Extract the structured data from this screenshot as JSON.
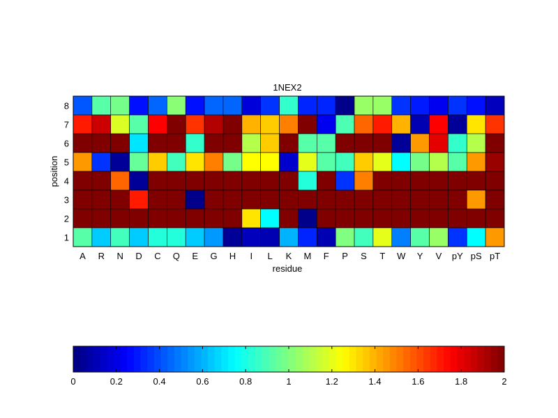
{
  "chart_data": {
    "type": "heatmap",
    "title": "1NEX2",
    "xlabel": "residue",
    "ylabel": "position",
    "x_categories": [
      "A",
      "R",
      "N",
      "D",
      "C",
      "Q",
      "E",
      "G",
      "H",
      "I",
      "L",
      "K",
      "M",
      "F",
      "P",
      "S",
      "T",
      "W",
      "Y",
      "V",
      "pY",
      "pS",
      "pT"
    ],
    "y_categories": [
      "1",
      "2",
      "3",
      "4",
      "5",
      "6",
      "7",
      "8"
    ],
    "colorbar": {
      "min": 0,
      "max": 2,
      "ticks": [
        "0",
        "0.2",
        "0.4",
        "0.6",
        "0.8",
        "1",
        "1.2",
        "1.4",
        "1.6",
        "1.8",
        "2"
      ],
      "colormap": "jet"
    },
    "rows": [
      {
        "position": "8",
        "values": [
          0.42,
          0.92,
          0.98,
          0.28,
          0.45,
          1.02,
          0.28,
          0.45,
          0.45,
          0.18,
          0.35,
          0.85,
          0.32,
          0.32,
          0.02,
          1.05,
          1.05,
          0.35,
          0.3,
          0.22,
          0.35,
          0.28,
          0.12
        ]
      },
      {
        "position": "7",
        "values": [
          1.7,
          1.85,
          1.18,
          0.92,
          1.75,
          2.0,
          1.65,
          1.9,
          2.0,
          1.4,
          1.35,
          1.5,
          2.0,
          0.22,
          0.9,
          1.55,
          1.7,
          1.4,
          0.1,
          1.75,
          0.05,
          1.3,
          1.65
        ]
      },
      {
        "position": "6",
        "values": [
          2.0,
          2.0,
          2.0,
          0.7,
          2.0,
          2.0,
          0.85,
          2.0,
          2.0,
          1.1,
          1.35,
          2.0,
          0.92,
          0.92,
          2.0,
          2.0,
          2.0,
          0.05,
          1.45,
          1.8,
          0.85,
          1.1,
          2.0
        ]
      },
      {
        "position": "5",
        "values": [
          1.45,
          0.35,
          0.05,
          0.95,
          1.35,
          0.88,
          1.3,
          1.5,
          0.98,
          1.25,
          1.25,
          0.15,
          1.2,
          0.92,
          0.88,
          1.35,
          1.2,
          0.75,
          0.98,
          1.1,
          0.92,
          1.45,
          1.95
        ]
      },
      {
        "position": "4",
        "values": [
          2.0,
          2.0,
          1.55,
          0.05,
          2.0,
          2.0,
          2.0,
          2.0,
          2.0,
          2.0,
          2.0,
          2.0,
          0.82,
          2.0,
          0.35,
          1.5,
          2.0,
          2.0,
          2.0,
          2.0,
          2.0,
          2.0,
          2.0
        ]
      },
      {
        "position": "3",
        "values": [
          2.0,
          2.0,
          2.0,
          1.7,
          2.0,
          2.0,
          0.02,
          2.0,
          2.0,
          2.0,
          2.0,
          2.0,
          2.0,
          2.0,
          2.0,
          2.0,
          2.0,
          2.0,
          2.0,
          2.0,
          2.0,
          1.45,
          2.0
        ]
      },
      {
        "position": "2",
        "values": [
          2.0,
          2.0,
          2.0,
          2.0,
          2.0,
          2.0,
          2.0,
          2.0,
          2.0,
          1.3,
          0.75,
          2.0,
          0.02,
          2.0,
          2.0,
          2.0,
          2.0,
          2.0,
          2.0,
          2.0,
          2.0,
          2.0,
          2.0
        ]
      },
      {
        "position": "1",
        "values": [
          0.92,
          0.65,
          0.88,
          0.65,
          0.82,
          0.82,
          0.65,
          0.55,
          0.05,
          0.12,
          0.1,
          0.6,
          0.32,
          0.1,
          1.0,
          0.88,
          1.2,
          0.5,
          0.92,
          1.05,
          0.35,
          0.75,
          1.45
        ]
      }
    ]
  }
}
